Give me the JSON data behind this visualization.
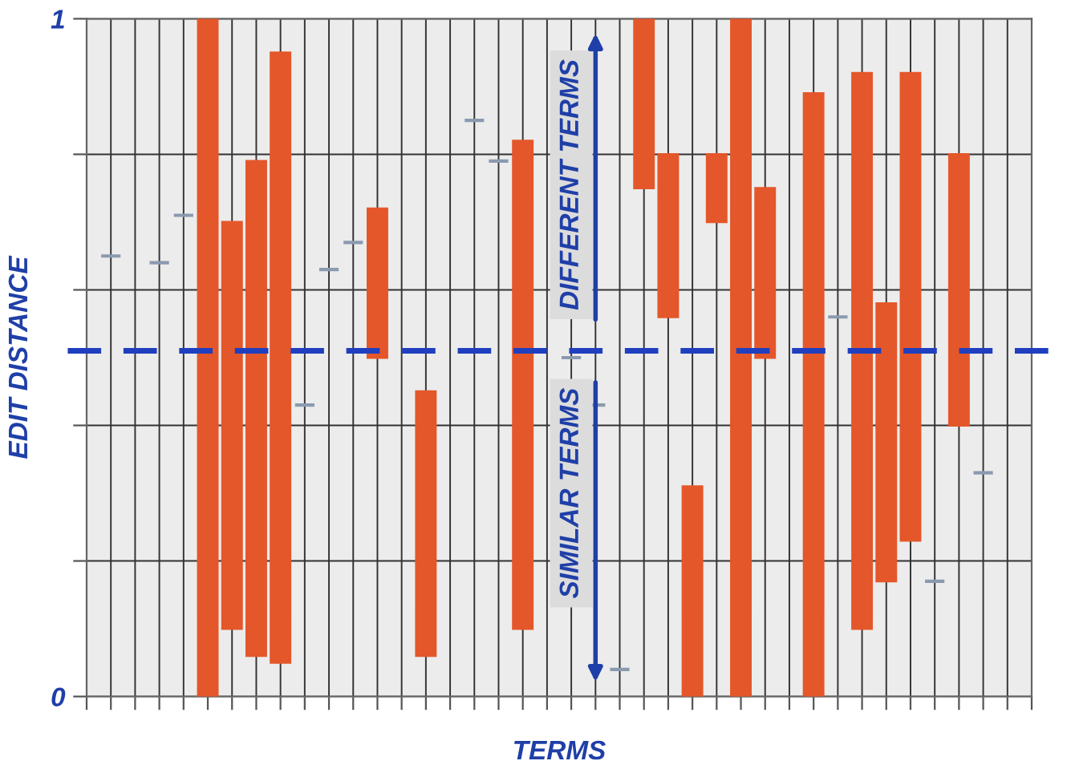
{
  "chart_data": {
    "type": "bar",
    "xlabel": "TERMS",
    "ylabel": "EDIT DISTANCE",
    "categories": [
      null,
      null,
      null,
      null,
      null,
      null,
      null,
      null,
      null,
      null,
      null,
      null,
      null,
      null,
      null,
      null,
      null,
      null,
      null,
      null,
      null,
      null,
      null,
      null,
      null,
      null,
      null,
      null,
      null,
      null,
      null,
      null,
      null,
      null,
      null,
      null,
      null,
      null
    ],
    "base": [
      0.65,
      null,
      0.64,
      0.71,
      0,
      0.1,
      0.06,
      0.05,
      0.43,
      0.63,
      0.67,
      0.5,
      null,
      0.06,
      null,
      0.85,
      0.79,
      0.1,
      null,
      0.5,
      0.43,
      0.04,
      0.75,
      0.56,
      0,
      0.7,
      0,
      0.5,
      null,
      0,
      0.56,
      0.1,
      0.17,
      0.23,
      0.17,
      0.4,
      0.33,
      null
    ],
    "values": [
      0,
      null,
      0,
      0,
      1,
      0.6,
      0.73,
      0.9,
      0,
      0,
      0,
      0.22,
      null,
      0.39,
      null,
      0,
      0,
      0.72,
      null,
      0,
      0,
      0,
      0.25,
      0.24,
      0.31,
      0.1,
      1,
      0.25,
      null,
      0.89,
      0,
      0.82,
      0.41,
      0.69,
      0,
      0.4,
      0,
      null
    ],
    "colors": [
      "#8a9ab0",
      "#8a9ab0",
      "#8a9ab0",
      "#8a9ab0",
      "#e4572a",
      "#e4572a",
      "#e4572a",
      "#e4572a",
      "#8a9ab0",
      "#8a9ab0",
      "#8a9ab0",
      "#e4572a",
      "#8a9ab0",
      "#e4572a",
      "#8a9ab0",
      "#8a9ab0",
      "#8a9ab0",
      "#e4572a",
      "#8a9ab0",
      "#8a9ab0",
      "#8a9ab0",
      "#8a9ab0",
      "#e4572a",
      "#e4572a",
      "#e4572a",
      "#e4572a",
      "#e4572a",
      "#e4572a",
      "#8a9ab0",
      "#e4572a",
      "#8a9ab0",
      "#e4572a",
      "#e4572a",
      "#e4572a",
      "#8a9ab0",
      "#e4572a",
      "#8a9ab0",
      "#8a9ab0"
    ],
    "ylim": [
      0,
      1
    ],
    "yticks": [
      0,
      {
        "value": 0.2,
        "label": null
      },
      {
        "value": 0.4,
        "label": null
      },
      {
        "value": 0.6,
        "label": null
      },
      {
        "value": 0.8,
        "label": null
      },
      1
    ],
    "ref_lines": [
      {
        "axis": "y",
        "value": 0.51,
        "color": "#1f3fbf",
        "line_style": "dashed"
      }
    ],
    "annotations": [
      "DIFFERENT TERMS",
      "SIMILAR TERMS"
    ],
    "grid": true
  }
}
